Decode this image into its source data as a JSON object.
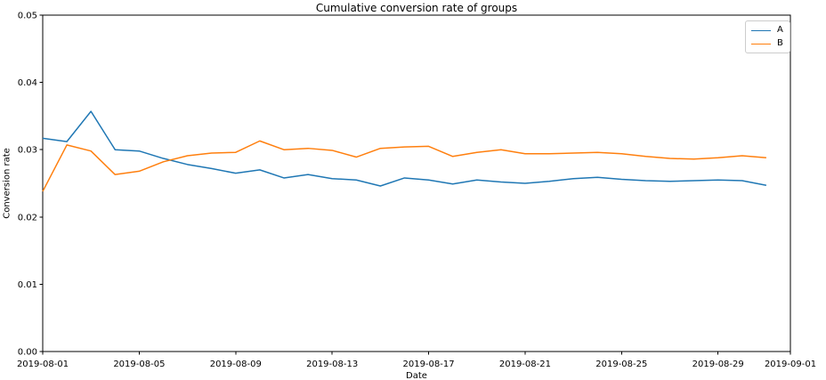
{
  "figure": {
    "title": "Cumulative conversion rate of groups",
    "xlabel": "Date",
    "ylabel": "Conversion rate"
  },
  "legend": {
    "position": "upper-right",
    "items": [
      {
        "label": "A",
        "color": "#1f77b4"
      },
      {
        "label": "B",
        "color": "#ff7f0e"
      }
    ]
  },
  "chart_data": {
    "type": "line",
    "title": "Cumulative conversion rate of groups",
    "xlabel": "Date",
    "ylabel": "Conversion rate",
    "grid": false,
    "legend_position": "upper-right",
    "ylim": [
      0.0,
      0.05
    ],
    "x_domain_days": [
      0,
      31
    ],
    "y_ticks": [
      "0.00",
      "0.01",
      "0.02",
      "0.03",
      "0.04",
      "0.05"
    ],
    "x_ticks": [
      {
        "day": 0,
        "label": "2019-08-01"
      },
      {
        "day": 4,
        "label": "2019-08-05"
      },
      {
        "day": 8,
        "label": "2019-08-09"
      },
      {
        "day": 12,
        "label": "2019-08-13"
      },
      {
        "day": 16,
        "label": "2019-08-17"
      },
      {
        "day": 20,
        "label": "2019-08-21"
      },
      {
        "day": 24,
        "label": "2019-08-25"
      },
      {
        "day": 28,
        "label": "2019-08-29"
      },
      {
        "day": 31,
        "label": "2019-09-01"
      }
    ],
    "x": [
      "2019-08-01",
      "2019-08-02",
      "2019-08-03",
      "2019-08-04",
      "2019-08-05",
      "2019-08-06",
      "2019-08-07",
      "2019-08-08",
      "2019-08-09",
      "2019-08-10",
      "2019-08-11",
      "2019-08-12",
      "2019-08-13",
      "2019-08-14",
      "2019-08-15",
      "2019-08-16",
      "2019-08-17",
      "2019-08-18",
      "2019-08-19",
      "2019-08-20",
      "2019-08-21",
      "2019-08-22",
      "2019-08-23",
      "2019-08-24",
      "2019-08-25",
      "2019-08-26",
      "2019-08-27",
      "2019-08-28",
      "2019-08-29",
      "2019-08-30",
      "2019-08-31"
    ],
    "series": [
      {
        "name": "A",
        "color": "#1f77b4",
        "values": [
          0.0317,
          0.0312,
          0.0357,
          0.03,
          0.0298,
          0.0287,
          0.0278,
          0.0272,
          0.0265,
          0.027,
          0.0258,
          0.0263,
          0.0257,
          0.0255,
          0.0246,
          0.0258,
          0.0255,
          0.0249,
          0.0255,
          0.0252,
          0.025,
          0.0253,
          0.0257,
          0.0259,
          0.0256,
          0.0254,
          0.0253,
          0.0254,
          0.0255,
          0.0254,
          0.0247
        ]
      },
      {
        "name": "B",
        "color": "#ff7f0e",
        "values": [
          0.0238,
          0.0307,
          0.0298,
          0.0263,
          0.0268,
          0.0282,
          0.0291,
          0.0295,
          0.0296,
          0.0313,
          0.03,
          0.0302,
          0.0299,
          0.0289,
          0.0302,
          0.0304,
          0.0305,
          0.029,
          0.0296,
          0.03,
          0.0294,
          0.0294,
          0.0295,
          0.0296,
          0.0294,
          0.029,
          0.0287,
          0.0286,
          0.0288,
          0.0291,
          0.0288
        ]
      }
    ]
  }
}
